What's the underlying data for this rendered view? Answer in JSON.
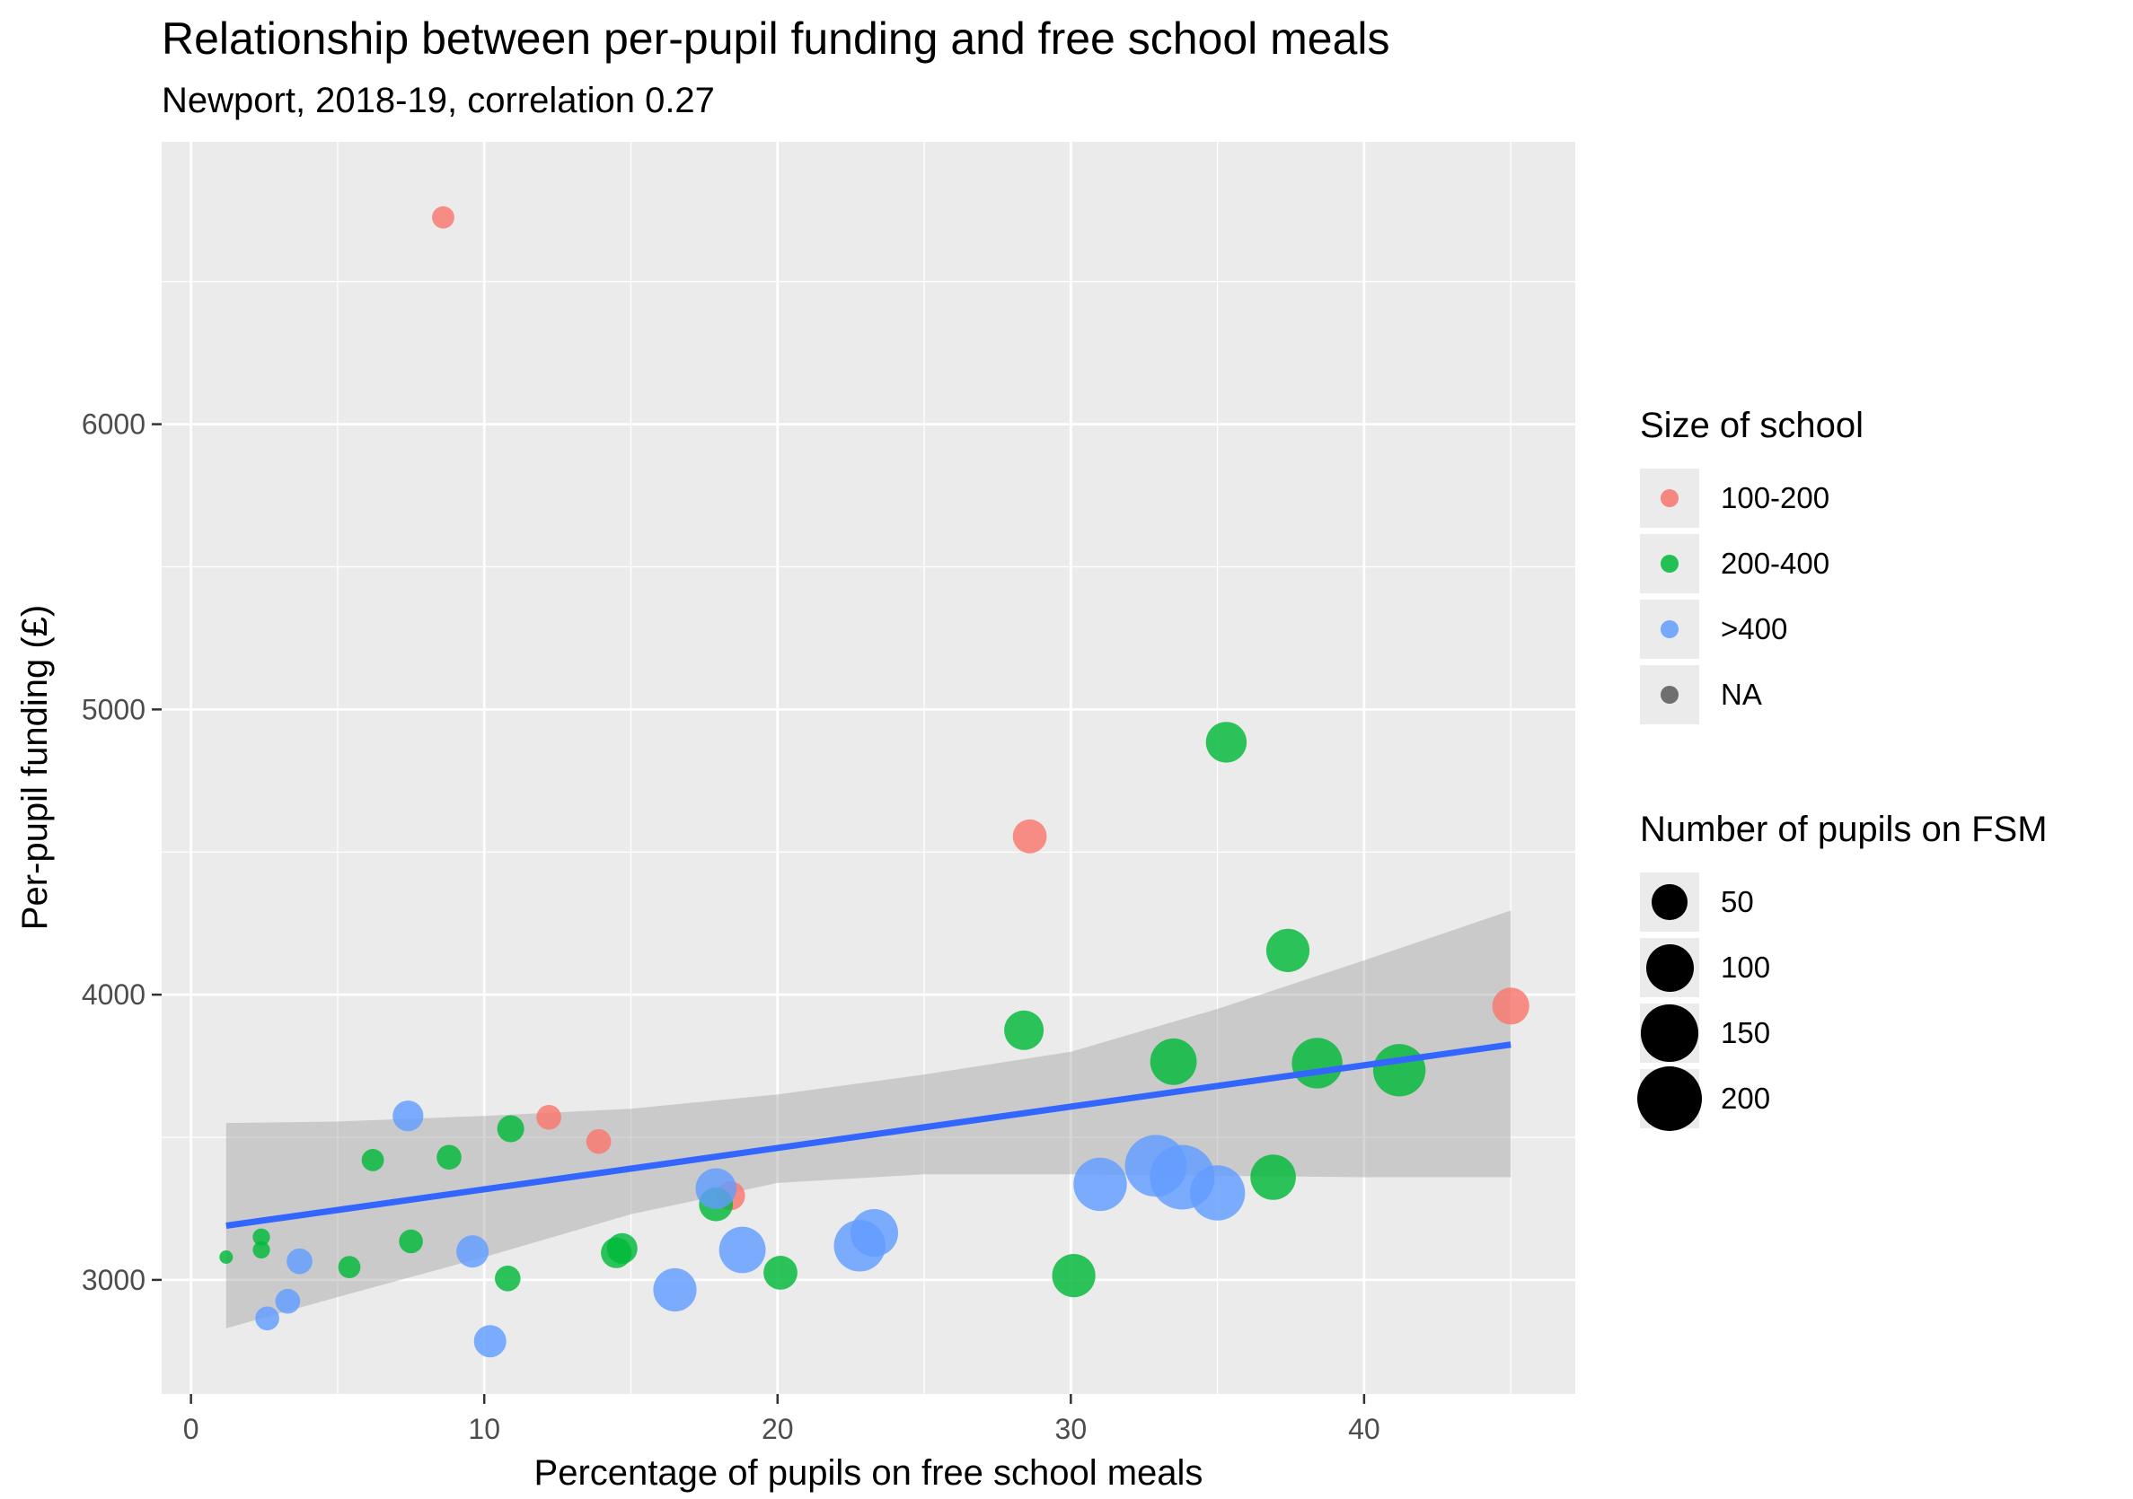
{
  "chart_data": {
    "type": "scatter",
    "title": "Relationship between per-pupil funding and free school meals",
    "subtitle": "Newport, 2018-19, correlation 0.27",
    "xlabel": "Percentage of pupils on free school meals",
    "ylabel": "Per-pupil funding (£)",
    "xlim": [
      -1,
      47.2
    ],
    "ylim": [
      2600,
      6990
    ],
    "xticks": [
      0,
      10,
      20,
      30,
      40
    ],
    "yticks": [
      3000,
      4000,
      5000,
      6000
    ],
    "xtick_labels": [
      "0",
      "10",
      "20",
      "30",
      "40"
    ],
    "ytick_labels": [
      "3000",
      "4000",
      "5000",
      "6000"
    ],
    "grid": true,
    "colors": {
      "100-200": "#F8766D",
      "200-400": "#00BA38",
      ">400": "#619CFF",
      "NA": "#595959",
      "trend": "#3366FF",
      "ribbon": "#999999",
      "panel": "#ebebeb",
      "gridline": "#ffffff"
    },
    "legend_color": {
      "title": "Size of school",
      "entries": [
        "100-200",
        "200-400",
        ">400",
        "NA"
      ]
    },
    "legend_size": {
      "title": "Number of pupils on FSM",
      "entries": [
        {
          "label": "50",
          "value": 50
        },
        {
          "label": "100",
          "value": 100
        },
        {
          "label": "150",
          "value": 150
        },
        {
          "label": "200",
          "value": 200
        }
      ]
    },
    "legend_position": "right",
    "trend": {
      "x": [
        1.2,
        45
      ],
      "y": [
        3190,
        3825
      ]
    },
    "ribbon": {
      "x": [
        1.2,
        5,
        10,
        15,
        20,
        25,
        30,
        35,
        40,
        45
      ],
      "upper": [
        3550,
        3555,
        3575,
        3600,
        3650,
        3720,
        3800,
        3950,
        4120,
        4295
      ],
      "lower": [
        2830,
        2940,
        3080,
        3230,
        3340,
        3370,
        3370,
        3365,
        3360,
        3360
      ]
    },
    "points": [
      {
        "x": 8.6,
        "y": 6725,
        "group": "100-200",
        "fsm": 15
      },
      {
        "x": 12.2,
        "y": 3570,
        "group": "100-200",
        "fsm": 20
      },
      {
        "x": 13.9,
        "y": 3485,
        "group": "100-200",
        "fsm": 20
      },
      {
        "x": 18.4,
        "y": 3295,
        "group": "100-200",
        "fsm": 30
      },
      {
        "x": 28.6,
        "y": 4555,
        "group": "100-200",
        "fsm": 45
      },
      {
        "x": 45.0,
        "y": 3960,
        "group": "100-200",
        "fsm": 55
      },
      {
        "x": 1.2,
        "y": 3080,
        "group": "200-400",
        "fsm": 3
      },
      {
        "x": 2.4,
        "y": 3150,
        "group": "200-400",
        "fsm": 7
      },
      {
        "x": 2.4,
        "y": 3105,
        "group": "200-400",
        "fsm": 7
      },
      {
        "x": 5.4,
        "y": 3045,
        "group": "200-400",
        "fsm": 15
      },
      {
        "x": 6.2,
        "y": 3420,
        "group": "200-400",
        "fsm": 15
      },
      {
        "x": 7.5,
        "y": 3135,
        "group": "200-400",
        "fsm": 18
      },
      {
        "x": 8.8,
        "y": 3430,
        "group": "200-400",
        "fsm": 20
      },
      {
        "x": 10.8,
        "y": 3005,
        "group": "200-400",
        "fsm": 22
      },
      {
        "x": 10.9,
        "y": 3530,
        "group": "200-400",
        "fsm": 25
      },
      {
        "x": 14.5,
        "y": 3095,
        "group": "200-400",
        "fsm": 35
      },
      {
        "x": 14.7,
        "y": 3110,
        "group": "200-400",
        "fsm": 35
      },
      {
        "x": 17.9,
        "y": 3265,
        "group": "200-400",
        "fsm": 45
      },
      {
        "x": 20.1,
        "y": 3025,
        "group": "200-400",
        "fsm": 45
      },
      {
        "x": 28.4,
        "y": 3875,
        "group": "200-400",
        "fsm": 65
      },
      {
        "x": 30.1,
        "y": 3015,
        "group": "200-400",
        "fsm": 80
      },
      {
        "x": 33.5,
        "y": 3765,
        "group": "200-400",
        "fsm": 95
      },
      {
        "x": 35.3,
        "y": 4885,
        "group": "200-400",
        "fsm": 70
      },
      {
        "x": 36.9,
        "y": 3360,
        "group": "200-400",
        "fsm": 90
      },
      {
        "x": 37.4,
        "y": 4155,
        "group": "200-400",
        "fsm": 80
      },
      {
        "x": 38.4,
        "y": 3760,
        "group": "200-400",
        "fsm": 115
      },
      {
        "x": 41.2,
        "y": 3735,
        "group": "200-400",
        "fsm": 125
      },
      {
        "x": 2.6,
        "y": 2865,
        "group": ">400",
        "fsm": 18
      },
      {
        "x": 3.3,
        "y": 2925,
        "group": ">400",
        "fsm": 20
      },
      {
        "x": 3.7,
        "y": 3065,
        "group": ">400",
        "fsm": 22
      },
      {
        "x": 7.4,
        "y": 3575,
        "group": ">400",
        "fsm": 35
      },
      {
        "x": 9.6,
        "y": 3100,
        "group": ">400",
        "fsm": 40
      },
      {
        "x": 10.2,
        "y": 2785,
        "group": ">400",
        "fsm": 40
      },
      {
        "x": 16.5,
        "y": 2965,
        "group": ">400",
        "fsm": 80
      },
      {
        "x": 17.9,
        "y": 3320,
        "group": ">400",
        "fsm": 70
      },
      {
        "x": 18.8,
        "y": 3105,
        "group": ">400",
        "fsm": 95
      },
      {
        "x": 22.8,
        "y": 3120,
        "group": ">400",
        "fsm": 120
      },
      {
        "x": 23.3,
        "y": 3165,
        "group": ">400",
        "fsm": 100
      },
      {
        "x": 31.0,
        "y": 3335,
        "group": ">400",
        "fsm": 130
      },
      {
        "x": 32.9,
        "y": 3400,
        "group": ">400",
        "fsm": 180
      },
      {
        "x": 33.8,
        "y": 3360,
        "group": ">400",
        "fsm": 200
      },
      {
        "x": 35.0,
        "y": 3305,
        "group": ">400",
        "fsm": 140
      }
    ]
  }
}
